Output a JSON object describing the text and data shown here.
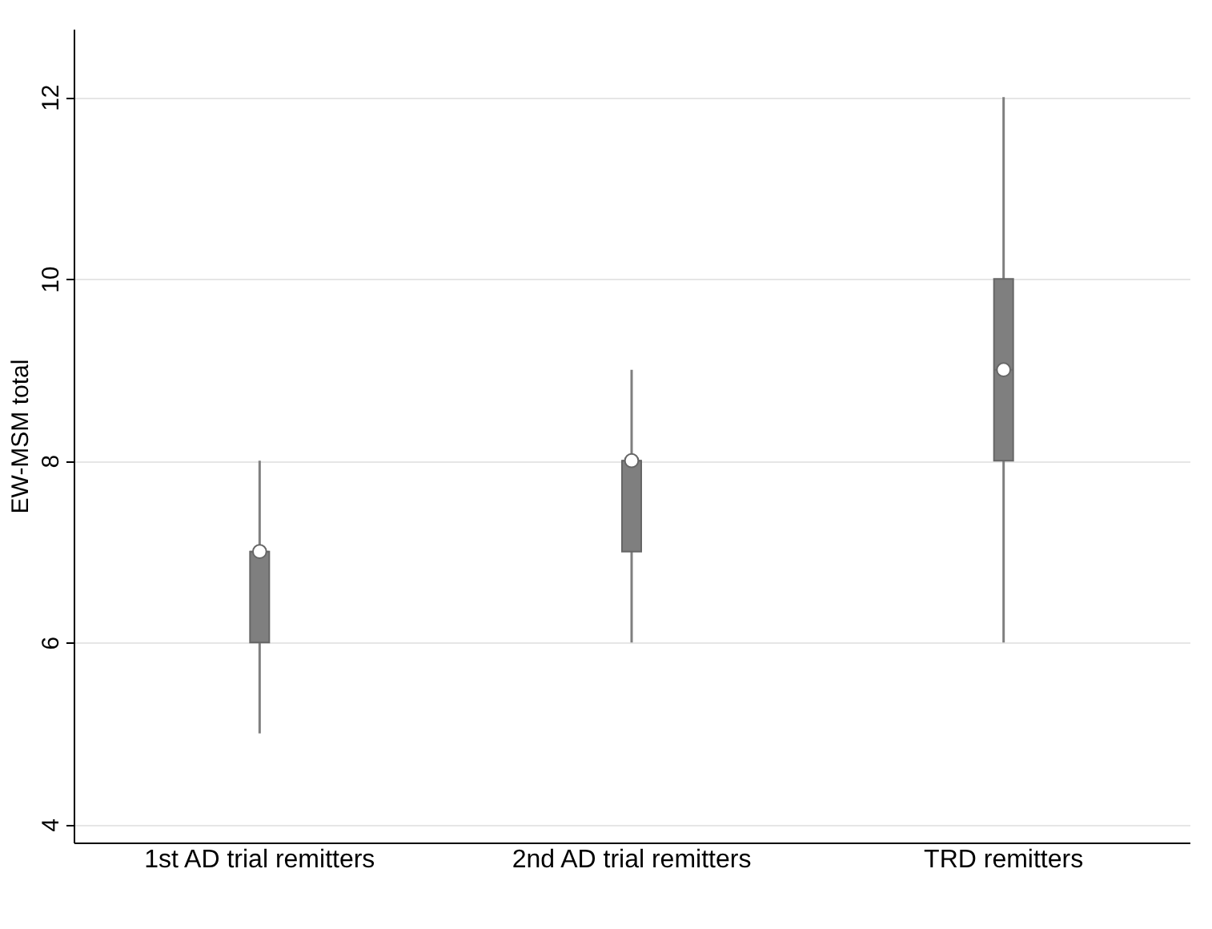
{
  "chart_data": {
    "type": "box",
    "ylabel": "EW-MSM total",
    "categories": [
      "1st AD trial remitters",
      "2nd AD trial remitters",
      "TRD remitters"
    ],
    "boxes": [
      {
        "low": 5,
        "q1": 6,
        "median": 7,
        "q3": 7,
        "high": 8
      },
      {
        "low": 6,
        "q1": 7,
        "median": 8,
        "q3": 8,
        "high": 9
      },
      {
        "low": 6,
        "q1": 8,
        "median": 9,
        "q3": 10,
        "high": 12
      }
    ],
    "color": "#7f7f7f",
    "series": [
      {
        "type": "scatter",
        "x": [
          "1st AD trial remitters",
          "2nd AD trial remitters",
          "TRD remitters"
        ],
        "values": [
          7,
          8,
          9
        ],
        "color": "#ffffff"
      }
    ],
    "ylim": [
      3.8,
      12.75
    ],
    "yticks": [
      4,
      6,
      8,
      10,
      12
    ],
    "grid": "y"
  }
}
